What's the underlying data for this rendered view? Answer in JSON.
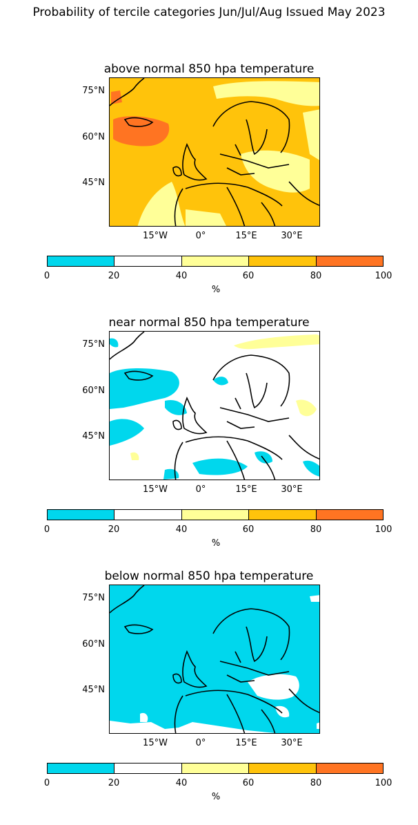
{
  "figure": {
    "title": "Probability of tercile categories Jun/Jul/Aug Issued May 2023"
  },
  "colorbar": {
    "ticks": [
      "0",
      "20",
      "40",
      "60",
      "80",
      "100"
    ],
    "unit": "%",
    "bins": [
      {
        "range": [
          0,
          20
        ],
        "color": "#00d7ed"
      },
      {
        "range": [
          20,
          40
        ],
        "color": "#ffffff"
      },
      {
        "range": [
          40,
          60
        ],
        "color": "#ffff98"
      },
      {
        "range": [
          60,
          80
        ],
        "color": "#ffc30b"
      },
      {
        "range": [
          80,
          100
        ],
        "color": "#ff7422"
      }
    ]
  },
  "axes": {
    "lat_labels": [
      "75°N",
      "60°N",
      "45°N"
    ],
    "lon_labels": [
      "15°W",
      "0°",
      "15°E",
      "30°E"
    ]
  },
  "panels": [
    {
      "title": "above normal 850 hpa temperature",
      "background_color": "#ffc30b",
      "dominant_category": "60-80"
    },
    {
      "title": "near normal 850 hpa temperature",
      "background_color": "#ffffff",
      "dominant_category": "20-40"
    },
    {
      "title": "below normal 850 hpa temperature",
      "background_color": "#00d7ed",
      "dominant_category": "0-20"
    }
  ]
}
